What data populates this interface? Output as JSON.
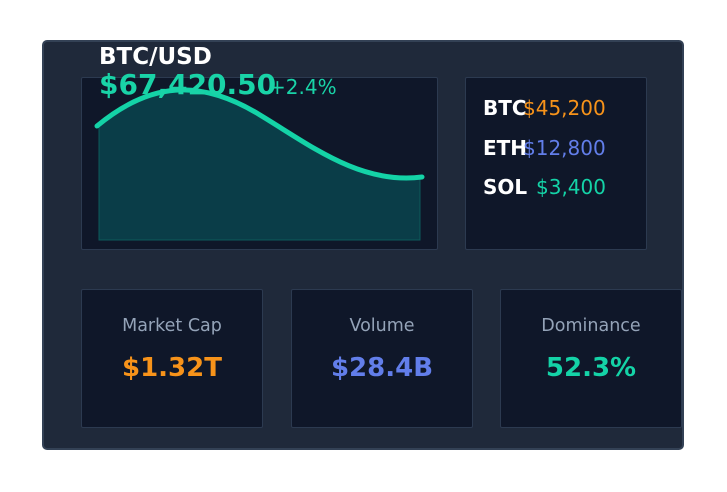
{
  "header": {
    "pair": "BTC/USD",
    "price": "$67,420.50",
    "change": "+2.4%"
  },
  "colors": {
    "accent": "#19d3a7",
    "btc": "#f7931a",
    "eth": "#627eea",
    "sol": "#14d3a7",
    "muted": "#94a3b8"
  },
  "tickers": [
    {
      "symbol": "BTC",
      "value": "$45,200"
    },
    {
      "symbol": "ETH",
      "value": "$12,800"
    },
    {
      "symbol": "SOL",
      "value": "$3,400"
    }
  ],
  "stats": [
    {
      "label": "Market Cap",
      "value": "$1.32T"
    },
    {
      "label": "Volume",
      "value": "$28.4B"
    },
    {
      "label": "Dominance",
      "value": "52.3%"
    }
  ]
}
